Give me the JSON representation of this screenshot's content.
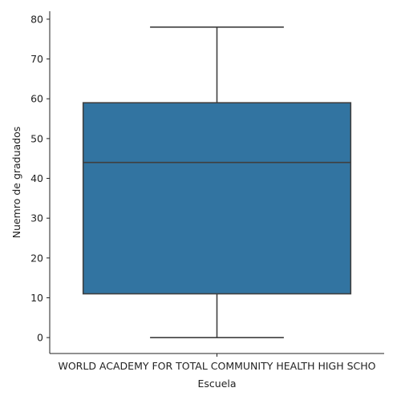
{
  "chart_data": {
    "type": "box",
    "title": "",
    "xlabel": "Escuela",
    "ylabel": "Nuemro de graduados",
    "categories": [
      "WORLD ACADEMY FOR TOTAL COMMUNITY HEALTH HIGH SCHO"
    ],
    "boxes": [
      {
        "category": "WORLD ACADEMY FOR TOTAL COMMUNITY HEALTH HIGH SCHO",
        "whisker_low": 0,
        "q1": 11,
        "median": 44,
        "q3": 59,
        "whisker_high": 78
      }
    ],
    "ylim": [
      -4,
      82
    ],
    "yticks": [
      0,
      10,
      20,
      30,
      40,
      50,
      60,
      70,
      80
    ],
    "grid": false,
    "colors": {
      "box": "#3274a1",
      "line": "#3f3f3f",
      "axis": "#222222"
    }
  }
}
